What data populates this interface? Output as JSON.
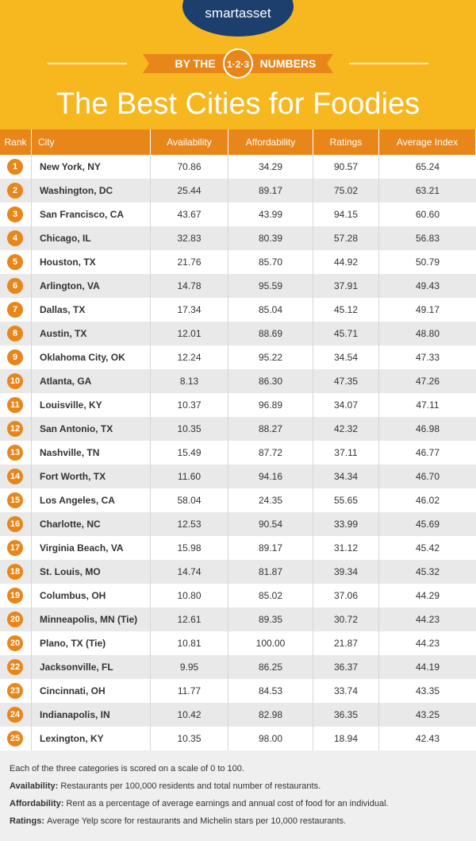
{
  "header": {
    "logo": "smartasset",
    "banner_left": "BY THE",
    "banner_mid": "1·2·3",
    "banner_right": "NUMBERS",
    "title": "The Best Cities for Foodies"
  },
  "table": {
    "columns": [
      "Rank",
      "City",
      "Availability",
      "Affordability",
      "Ratings",
      "Average Index"
    ],
    "rows": [
      [
        "1",
        "New York, NY",
        "70.86",
        "34.29",
        "90.57",
        "65.24"
      ],
      [
        "2",
        "Washington, DC",
        "25.44",
        "89.17",
        "75.02",
        "63.21"
      ],
      [
        "3",
        "San Francisco, CA",
        "43.67",
        "43.99",
        "94.15",
        "60.60"
      ],
      [
        "4",
        "Chicago, IL",
        "32.83",
        "80.39",
        "57.28",
        "56.83"
      ],
      [
        "5",
        "Houston, TX",
        "21.76",
        "85.70",
        "44.92",
        "50.79"
      ],
      [
        "6",
        "Arlington, VA",
        "14.78",
        "95.59",
        "37.91",
        "49.43"
      ],
      [
        "7",
        "Dallas, TX",
        "17.34",
        "85.04",
        "45.12",
        "49.17"
      ],
      [
        "8",
        "Austin, TX",
        "12.01",
        "88.69",
        "45.71",
        "48.80"
      ],
      [
        "9",
        "Oklahoma City, OK",
        "12.24",
        "95.22",
        "34.54",
        "47.33"
      ],
      [
        "10",
        "Atlanta, GA",
        "8.13",
        "86.30",
        "47.35",
        "47.26"
      ],
      [
        "11",
        "Louisville, KY",
        "10.37",
        "96.89",
        "34.07",
        "47.11"
      ],
      [
        "12",
        "San Antonio, TX",
        "10.35",
        "88.27",
        "42.32",
        "46.98"
      ],
      [
        "13",
        "Nashville, TN",
        "15.49",
        "87.72",
        "37.11",
        "46.77"
      ],
      [
        "14",
        "Fort Worth, TX",
        "11.60",
        "94.16",
        "34.34",
        "46.70"
      ],
      [
        "15",
        "Los Angeles, CA",
        "58.04",
        "24.35",
        "55.65",
        "46.02"
      ],
      [
        "16",
        "Charlotte, NC",
        "12.53",
        "90.54",
        "33.99",
        "45.69"
      ],
      [
        "17",
        "Virginia Beach, VA",
        "15.98",
        "89.17",
        "31.12",
        "45.42"
      ],
      [
        "18",
        "St. Louis, MO",
        "14.74",
        "81.87",
        "39.34",
        "45.32"
      ],
      [
        "19",
        "Columbus, OH",
        "10.80",
        "85.02",
        "37.06",
        "44.29"
      ],
      [
        "20",
        "Minneapolis, MN (Tie)",
        "12.61",
        "89.35",
        "30.72",
        "44.23"
      ],
      [
        "20",
        "Plano, TX (Tie)",
        "10.81",
        "100.00",
        "21.87",
        "44.23"
      ],
      [
        "22",
        "Jacksonville, FL",
        "9.95",
        "86.25",
        "36.37",
        "44.19"
      ],
      [
        "23",
        "Cincinnati, OH",
        "11.77",
        "84.53",
        "33.74",
        "43.35"
      ],
      [
        "24",
        "Indianapolis, IN",
        "10.42",
        "82.98",
        "36.35",
        "43.25"
      ],
      [
        "25",
        "Lexington, KY",
        "10.35",
        "98.00",
        "18.94",
        "42.43"
      ]
    ]
  },
  "notes": [
    {
      "text": "Each of the three categories is scored on a scale of 0 to 100."
    },
    {
      "label": "Availability:",
      "text": "Restaurants per 100,000 residents and total number of restaurants."
    },
    {
      "label": "Affordability:",
      "text": "Rent as a percentage of average earnings and annual cost of food for an individual."
    },
    {
      "label": "Ratings:",
      "text": "Average Yelp score for restaurants and Michelin stars per 10,000 restaurants."
    }
  ]
}
